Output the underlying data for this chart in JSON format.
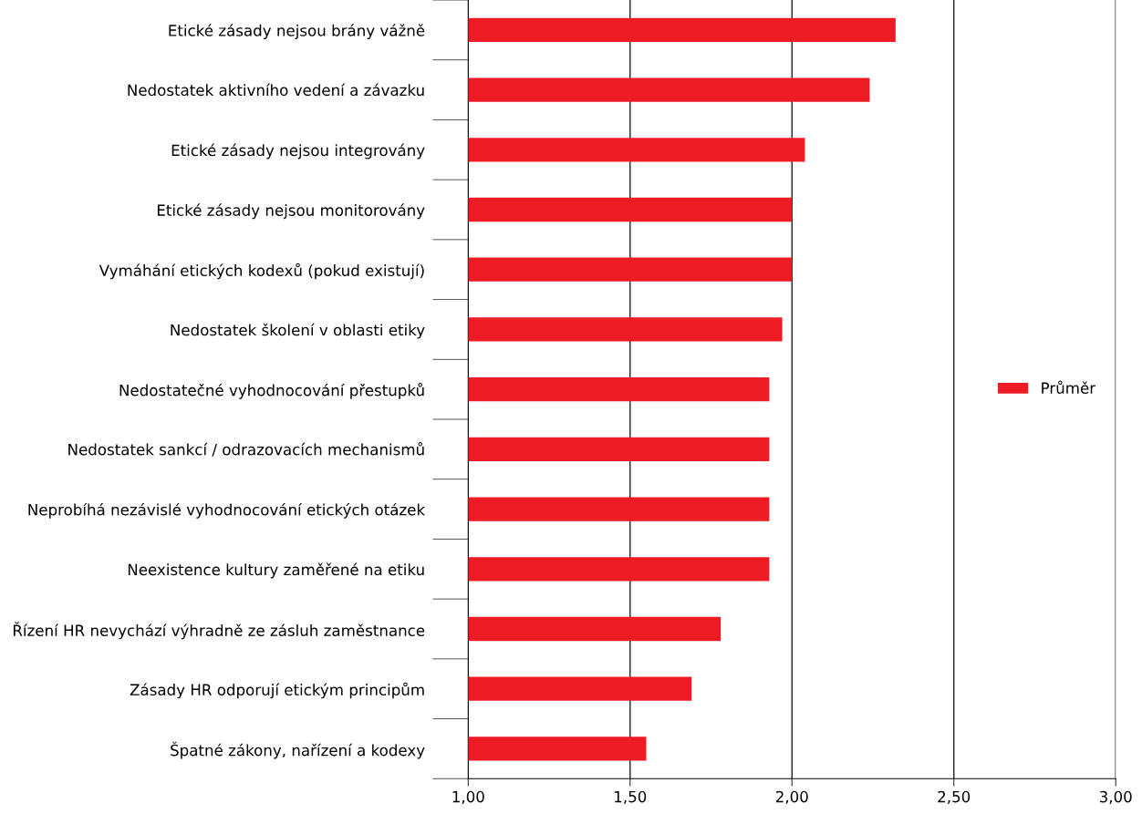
{
  "chart_data": {
    "type": "bar",
    "orientation": "horizontal",
    "categories": [
      "Etické zásady nejsou brány vážně",
      "Nedostatek aktivního vedení a závazku",
      "Etické zásady nejsou integrovány",
      "Etické zásady nejsou monitorovány",
      "Vymáhání etických kodexů (pokud existují)",
      "Nedostatek školení v oblasti etiky",
      "Nedostatečné vyhodnocování přestupků",
      "Nedostatek sankcí / odrazovacích mechanismů",
      "Neprobíhá nezávislé vyhodnocování etických otázek",
      "Neexistence kultury zaměřené na etiku",
      "Řízení HR nevychází výhradně ze zásluh zaměstnance",
      "Zásady HR odporují etickým principům",
      "Špatné zákony, nařízení a kodexy"
    ],
    "series": [
      {
        "name": "Průměr",
        "color": "#ed1c24",
        "values": [
          2.32,
          2.24,
          2.04,
          2.0,
          2.0,
          1.97,
          1.93,
          1.93,
          1.93,
          1.93,
          1.78,
          1.69,
          1.55
        ]
      }
    ],
    "xlim": [
      1.0,
      3.0
    ],
    "xticks": [
      {
        "value": 1.0,
        "label": "1,00"
      },
      {
        "value": 1.5,
        "label": "1,50"
      },
      {
        "value": 2.0,
        "label": "2,00"
      },
      {
        "value": 2.5,
        "label": "2,50"
      },
      {
        "value": 3.0,
        "label": "3,00"
      }
    ],
    "grid": "x",
    "legend": "right"
  }
}
